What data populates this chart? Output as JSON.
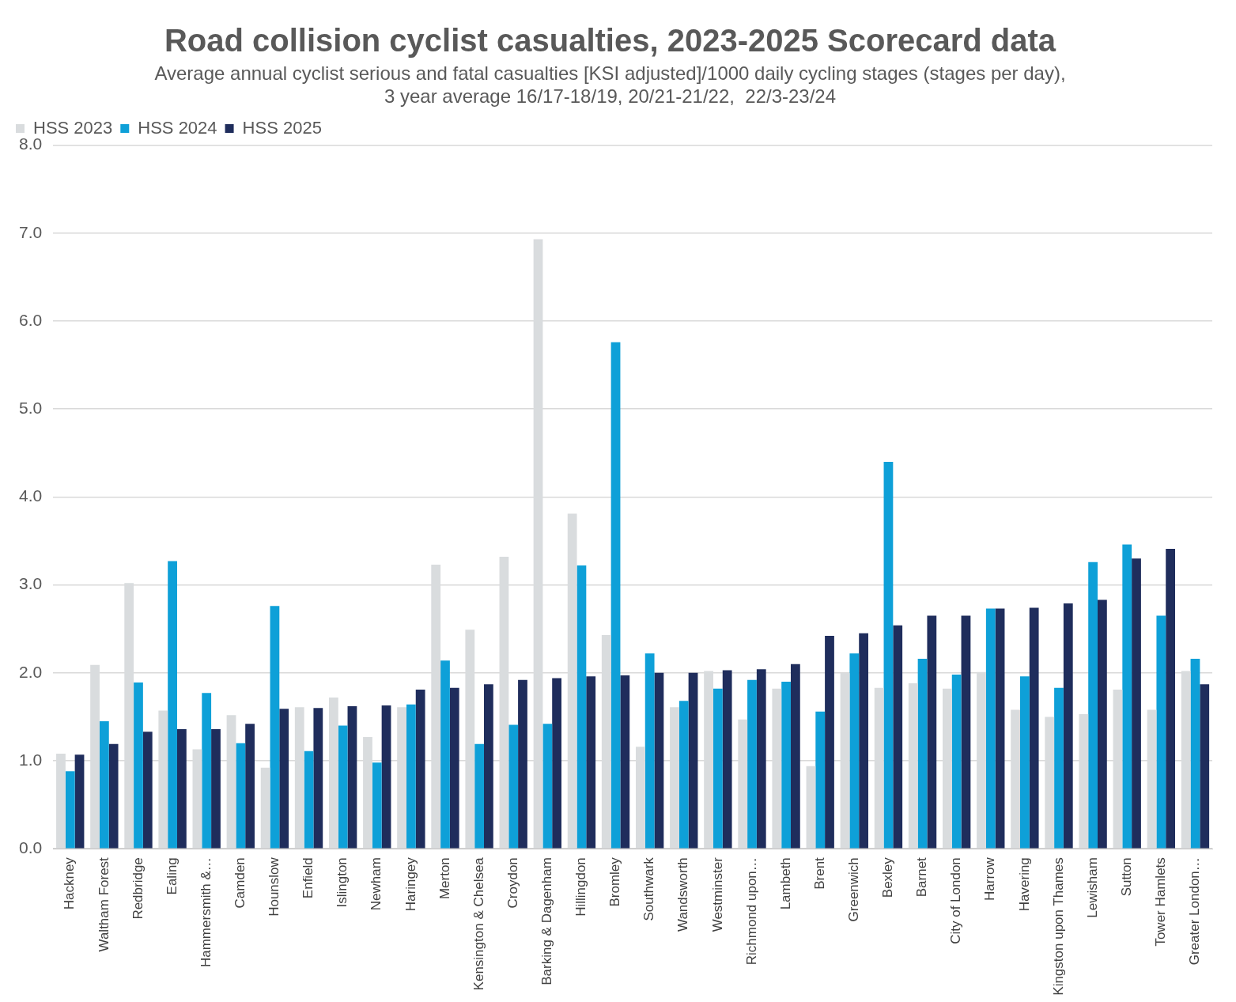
{
  "chart_data": {
    "type": "bar",
    "title": "Road collision cyclist casualties, 2023-2025 Scorecard data",
    "subtitle": "Average annual cyclist serious and fatal casualties [KSI adjusted]/1000 daily cycling stages (stages per day),\n3 year average 16/17-18/19, 20/21-21/22,  22/3-23/24",
    "categories": [
      "Hackney",
      "Waltham Forest",
      "Redbridge",
      "Ealing",
      "Hammersmith &…",
      "Camden",
      "Hounslow",
      "Enfield",
      "Islington",
      "Newham",
      "Haringey",
      "Merton",
      "Kensington & Chelsea",
      "Croydon",
      "Barking & Dagenham",
      "Hillingdon",
      "Bromley",
      "Southwark",
      "Wandsworth",
      "Westminster",
      "Richmond upon…",
      "Lambeth",
      "Brent",
      "Greenwich",
      "Bexley",
      "Barnet",
      "City of London",
      "Harrow",
      "Havering",
      "Kingston upon Thames",
      "Lewisham",
      "Sutton",
      "Tower Hamlets",
      "Greater London…"
    ],
    "series": [
      {
        "name": "HSS 2023",
        "color": "#d9dcde",
        "values": [
          1.08,
          2.09,
          3.02,
          1.57,
          1.13,
          1.52,
          0.92,
          1.61,
          1.72,
          1.27,
          1.61,
          3.23,
          2.49,
          3.32,
          6.93,
          3.81,
          2.43,
          1.16,
          1.61,
          2.02,
          1.47,
          1.82,
          0.94,
          2.0,
          1.83,
          1.88,
          1.82,
          2.01,
          1.58,
          1.5,
          1.53,
          1.81,
          1.58,
          2.02
        ]
      },
      {
        "name": "HSS 2024",
        "color": "#0ea0d8",
        "values": [
          0.88,
          1.45,
          1.89,
          3.27,
          1.77,
          1.2,
          2.76,
          1.11,
          1.4,
          0.98,
          1.64,
          2.14,
          1.19,
          1.41,
          1.42,
          3.22,
          5.76,
          2.22,
          1.68,
          1.82,
          1.92,
          1.9,
          1.56,
          2.22,
          4.4,
          2.16,
          1.98,
          2.73,
          1.96,
          1.83,
          3.26,
          3.46,
          2.65,
          2.16
        ]
      },
      {
        "name": "HSS 2025",
        "color": "#1f2d5c",
        "values": [
          1.07,
          1.19,
          1.33,
          1.36,
          1.36,
          1.42,
          1.59,
          1.6,
          1.62,
          1.63,
          1.81,
          1.83,
          1.87,
          1.92,
          1.94,
          1.96,
          1.97,
          2.0,
          2.0,
          2.03,
          2.04,
          2.1,
          2.42,
          2.45,
          2.54,
          2.65,
          2.65,
          2.73,
          2.74,
          2.79,
          2.83,
          3.3,
          3.41,
          1.87
        ]
      }
    ],
    "ylim": [
      0,
      8
    ],
    "yticks": [
      {
        "value": 0,
        "label": "0.0"
      },
      {
        "value": 1,
        "label": "1.0"
      },
      {
        "value": 2,
        "label": "2.0"
      },
      {
        "value": 3,
        "label": "3.0"
      },
      {
        "value": 4,
        "label": "4.0"
      },
      {
        "value": 5,
        "label": "5.0"
      },
      {
        "value": 6,
        "label": "6.0"
      },
      {
        "value": 7,
        "label": "7.0"
      },
      {
        "value": 8,
        "label": "8.0"
      }
    ],
    "grid": "y",
    "legend": "top left"
  }
}
